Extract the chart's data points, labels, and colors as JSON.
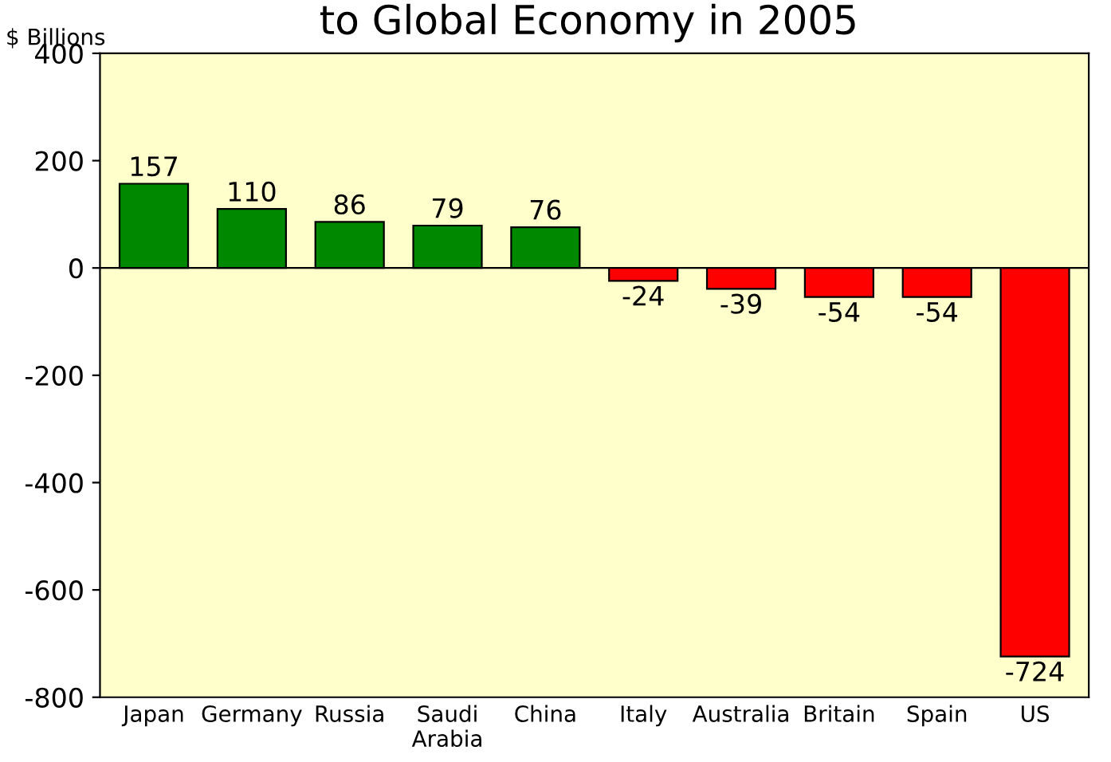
{
  "chart_data": {
    "type": "bar",
    "title": "to Global Economy in 2005",
    "ylabel": "$ Billions",
    "categories": [
      "Japan",
      "Germany",
      "Russia",
      "Saudi\nArabia",
      "China",
      "Italy",
      "Australia",
      "Britain",
      "Spain",
      "US"
    ],
    "values": [
      157,
      110,
      86,
      79,
      76,
      -24,
      -39,
      -54,
      -54,
      -724
    ],
    "colors": [
      "#008800",
      "#008800",
      "#008800",
      "#008800",
      "#008800",
      "#ff0000",
      "#ff0000",
      "#ff0000",
      "#ff0000",
      "#ff0000"
    ],
    "ylim": [
      -800,
      400
    ],
    "yticks": [
      -800,
      -600,
      -400,
      -200,
      0,
      200,
      400
    ],
    "ref_lines": [
      {
        "axis": "y",
        "value": 0,
        "label": null,
        "color": "#000000"
      }
    ],
    "data_labels": true,
    "grid": false,
    "legend": false
  }
}
